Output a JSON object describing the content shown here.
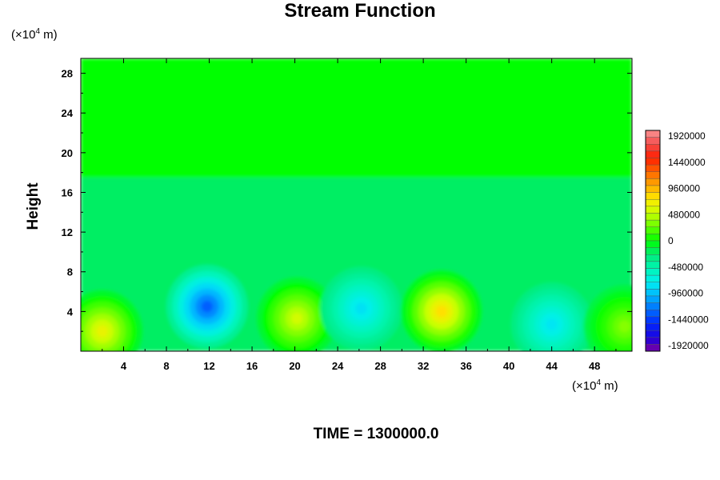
{
  "chart_data": {
    "type": "heatmap",
    "title": "Stream Function",
    "ylabel": "Height",
    "y_unit": {
      "prefix": "(×10",
      "exponent": "4",
      "suffix": " m)"
    },
    "x_unit": {
      "prefix": "(×10",
      "exponent": "4",
      "suffix": " m)"
    },
    "footer": "TIME = 1300000.0",
    "xlim": [
      0,
      51.5
    ],
    "ylim": [
      0,
      29.5
    ],
    "x_ticks": [
      4,
      8,
      12,
      16,
      20,
      24,
      28,
      32,
      36,
      40,
      44,
      48
    ],
    "y_ticks": [
      4,
      8,
      12,
      16,
      20,
      24,
      28
    ],
    "colorbar": {
      "range": [
        -1920000,
        1920000
      ],
      "labels": [
        1920000,
        1440000,
        960000,
        480000,
        0,
        -480000,
        -960000,
        -1440000,
        -1920000
      ]
    },
    "features": [
      {
        "x": 2.0,
        "y": 2.0,
        "value": 620000
      },
      {
        "x": 11.8,
        "y": 4.5,
        "value": -1250000
      },
      {
        "x": 20.2,
        "y": 3.3,
        "value": 520000
      },
      {
        "x": 26.2,
        "y": 4.3,
        "value": -780000
      },
      {
        "x": 33.7,
        "y": 4.0,
        "value": 760000
      },
      {
        "x": 44.0,
        "y": 2.7,
        "value": -760000
      },
      {
        "x": 50.8,
        "y": 2.5,
        "value": 320000
      }
    ]
  }
}
